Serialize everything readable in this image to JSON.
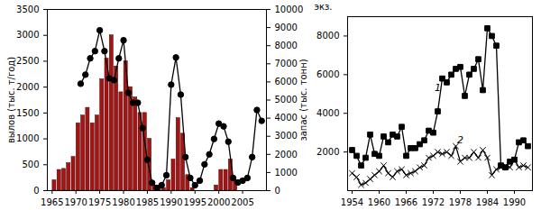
{
  "chart_data": [
    {
      "type": "bar",
      "x": [
        1965,
        1966,
        1967,
        1968,
        1969,
        1970,
        1971,
        1972,
        1973,
        1974,
        1975,
        1976,
        1977,
        1978,
        1979,
        1980,
        1981,
        1982,
        1983,
        1984,
        1985,
        1986,
        1987,
        1988,
        1989,
        1990,
        1991,
        1992,
        1993,
        1994,
        1995,
        1996,
        1997,
        1998,
        1999,
        2000,
        2001,
        2002,
        2003,
        2004,
        2005,
        2006,
        2007,
        2008,
        2009
      ],
      "xlim": [
        1964,
        2010
      ],
      "xticks": [
        1965,
        1970,
        1975,
        1980,
        1985,
        1990,
        1995,
        2000,
        2005
      ],
      "ylabel": "вылов (тыс. т/год)",
      "ylim": [
        0,
        3500
      ],
      "yticks": [
        0,
        500,
        1000,
        1500,
        2000,
        2500,
        3000,
        3500
      ],
      "y2label": "запас (тыс. тонн)",
      "y2lim": [
        0,
        10000
      ],
      "y2ticks": [
        0,
        1000,
        2000,
        3000,
        4000,
        5000,
        6000,
        7000,
        8000,
        9000,
        10000
      ],
      "series": [
        {
          "type": "bar",
          "color": "#a31515",
          "values": [
            200,
            400,
            420,
            530,
            650,
            1300,
            1450,
            1600,
            1300,
            1450,
            2150,
            2550,
            3000,
            2400,
            1900,
            2500,
            2000,
            1800,
            1500,
            1500,
            1000,
            100,
            50,
            50,
            200,
            600,
            1400,
            1100,
            300,
            50,
            null,
            null,
            null,
            null,
            100,
            400,
            400,
            600,
            200,
            null,
            null,
            null,
            null,
            null,
            null
          ]
        },
        {
          "type": "line",
          "axis": "y2",
          "color": "#000000",
          "marker": "circle",
          "line_style": "solid",
          "values": [
            null,
            null,
            null,
            null,
            null,
            null,
            5900,
            6400,
            7300,
            7700,
            8850,
            7700,
            6200,
            6100,
            7300,
            8300,
            5400,
            4850,
            4850,
            3450,
            1700,
            430,
            150,
            300,
            850,
            5850,
            7350,
            5300,
            1850,
            700,
            300,
            550,
            1450,
            2000,
            2850,
            3700,
            3550,
            2700,
            700,
            450,
            550,
            700,
            1850,
            4450,
            3850
          ]
        }
      ]
    },
    {
      "type": "line",
      "x": [
        1954,
        1955,
        1956,
        1957,
        1958,
        1959,
        1960,
        1961,
        1962,
        1963,
        1964,
        1965,
        1966,
        1967,
        1968,
        1969,
        1970,
        1971,
        1972,
        1973,
        1974,
        1975,
        1976,
        1977,
        1978,
        1979,
        1980,
        1981,
        1982,
        1983,
        1984,
        1985,
        1986,
        1987,
        1988,
        1989,
        1990,
        1991,
        1992,
        1993
      ],
      "xlim": [
        1953,
        1994
      ],
      "xticks": [
        1954,
        1960,
        1966,
        1972,
        1978,
        1984,
        1990
      ],
      "ylabel": "экз.",
      "ylim": [
        0,
        9000
      ],
      "yticks": [
        2000,
        4000,
        6000,
        8000
      ],
      "series": [
        {
          "color": "#000000",
          "marker": "square",
          "line_style": "solid",
          "values": [
            2100,
            1800,
            1300,
            1700,
            2900,
            1900,
            1800,
            2800,
            2500,
            2900,
            2800,
            3300,
            1800,
            2200,
            2200,
            2400,
            2600,
            3100,
            3000,
            4100,
            5800,
            5600,
            6000,
            6300,
            6400,
            4900,
            6000,
            6300,
            6800,
            5200,
            8400,
            8000,
            7500,
            1300,
            1200,
            1500,
            1600,
            2500,
            2600,
            2300
          ]
        },
        {
          "color": "#000000",
          "marker": "times",
          "line_style": "solid",
          "values": [
            900,
            700,
            300,
            400,
            600,
            800,
            1000,
            1300,
            900,
            700,
            1000,
            1100,
            800,
            900,
            1000,
            1200,
            1300,
            1700,
            1800,
            2000,
            1900,
            2000,
            1800,
            2300,
            1500,
            1700,
            1700,
            2000,
            1700,
            2100,
            1700,
            800,
            1100,
            1200,
            1300,
            1200,
            1600,
            1200,
            1300,
            1200
          ]
        }
      ],
      "annotations": [
        {
          "text": "1",
          "x": 1973,
          "y": 5300
        },
        {
          "text": "2",
          "x": 1978,
          "y": 2600
        }
      ]
    }
  ]
}
